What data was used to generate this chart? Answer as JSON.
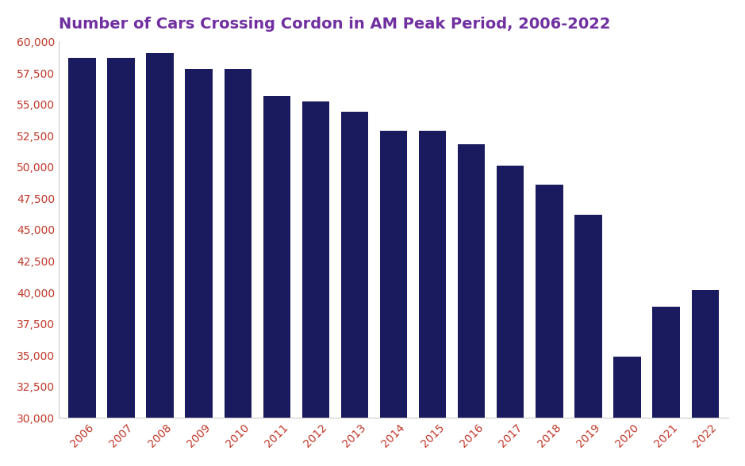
{
  "title": "Number of Cars Crossing Cordon in AM Peak Period, 2006-2022",
  "title_color": "#7030A0",
  "bar_color": "#1a1a5e",
  "background_color": "#ffffff",
  "years": [
    "2006",
    "2007",
    "2008",
    "2009",
    "2010",
    "2011",
    "2012",
    "2013",
    "2014",
    "2015",
    "2016",
    "2017",
    "2018",
    "2019",
    "2020",
    "2021",
    "2022"
  ],
  "values": [
    58700,
    58700,
    59100,
    57800,
    57800,
    55700,
    55200,
    54400,
    52900,
    52900,
    51800,
    50100,
    48600,
    46200,
    34900,
    38900,
    40200
  ],
  "ylim": [
    30000,
    60000
  ],
  "yticks": [
    30000,
    32500,
    35000,
    37500,
    40000,
    42500,
    45000,
    47500,
    50000,
    52500,
    55000,
    57500,
    60000
  ],
  "tick_label_color": "#c0392b",
  "axis_color": "#cccccc",
  "title_fontsize": 14,
  "tick_fontsize": 10,
  "bar_width": 0.7
}
